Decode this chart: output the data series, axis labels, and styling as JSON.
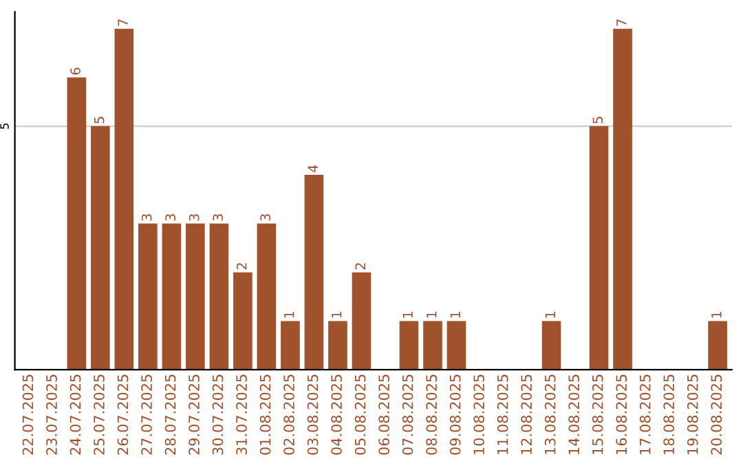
{
  "chart_data": {
    "type": "bar",
    "categories": [
      "22.07.2025",
      "23.07.2025",
      "24.07.2025",
      "25.07.2025",
      "26.07.2025",
      "27.07.2025",
      "28.07.2025",
      "29.07.2025",
      "30.07.2025",
      "31.07.2025",
      "01.08.2025",
      "02.08.2025",
      "03.08.2025",
      "04.08.2025",
      "05.08.2025",
      "06.08.2025",
      "07.08.2025",
      "08.08.2025",
      "09.08.2025",
      "10.08.2025",
      "11.08.2025",
      "12.08.2025",
      "13.08.2025",
      "14.08.2025",
      "15.08.2025",
      "16.08.2025",
      "17.08.2025",
      "18.08.2025",
      "19.08.2025",
      "20.08.2025"
    ],
    "values": [
      0,
      0,
      6,
      5,
      7,
      3,
      3,
      3,
      3,
      2,
      3,
      1,
      4,
      1,
      2,
      0,
      1,
      1,
      1,
      0,
      0,
      0,
      1,
      0,
      5,
      7,
      0,
      0,
      0,
      1
    ],
    "value_labels": [
      null,
      null,
      "6",
      "5",
      "7",
      "3",
      "3",
      "3",
      "3",
      "2",
      "3",
      "1",
      "4",
      "1",
      "2",
      null,
      "1",
      "1",
      "1",
      null,
      null,
      null,
      "1",
      null,
      "5",
      "7",
      null,
      null,
      null,
      "1"
    ],
    "color": "#a0522d",
    "ylim": [
      0,
      7.35
    ],
    "yticks": [
      5
    ],
    "grid": "y"
  }
}
